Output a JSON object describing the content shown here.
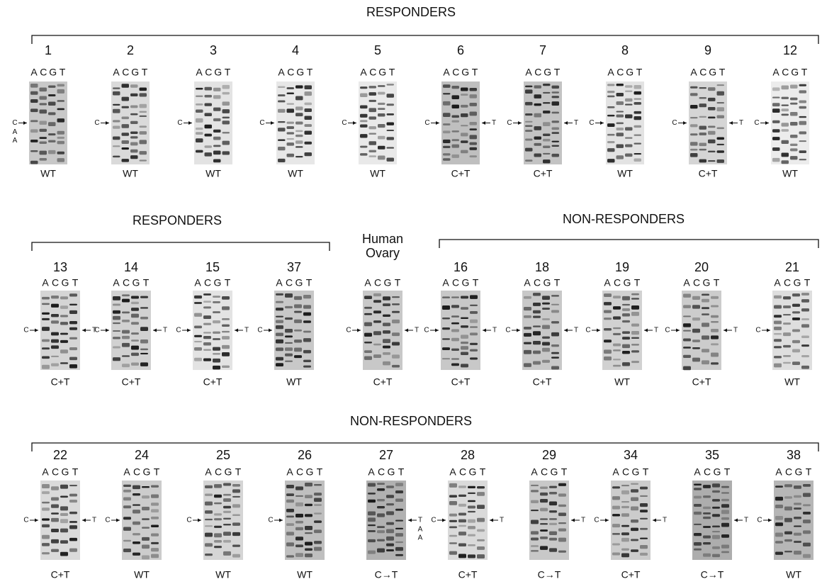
{
  "bases": [
    "A",
    "C",
    "G",
    "T"
  ],
  "panels": [
    {
      "groups": [
        {
          "title": "RESPONDERS",
          "lanes": [
            {
              "label": "1",
              "genotype": "WT",
              "left_mark": "C",
              "left_extra": [
                "A",
                "A"
              ]
            },
            {
              "label": "2",
              "genotype": "WT",
              "left_mark": "C"
            },
            {
              "label": "3",
              "genotype": "WT",
              "left_mark": "C"
            },
            {
              "label": "4",
              "genotype": "WT",
              "left_mark": "C"
            },
            {
              "label": "5",
              "genotype": "WT",
              "left_mark": "C"
            },
            {
              "label": "6",
              "genotype": "C+T",
              "left_mark": "C",
              "right_mark": "T"
            },
            {
              "label": "7",
              "genotype": "C+T",
              "left_mark": "C",
              "right_mark": "T"
            },
            {
              "label": "8",
              "genotype": "WT",
              "left_mark": "C"
            },
            {
              "label": "9",
              "genotype": "C+T",
              "left_mark": "C",
              "right_mark": "T"
            },
            {
              "label": "12",
              "genotype": "WT",
              "left_mark": "C"
            }
          ]
        }
      ]
    },
    {
      "groups": [
        {
          "title": "RESPONDERS",
          "lanes": [
            {
              "label": "13",
              "genotype": "C+T",
              "left_mark": "C",
              "right_mark": "T"
            },
            {
              "label": "14",
              "genotype": "C+T",
              "left_mark": "C",
              "right_mark": "T"
            },
            {
              "label": "15",
              "genotype": "C+T",
              "left_mark": "C",
              "right_mark": "T"
            },
            {
              "label": "37",
              "genotype": "WT",
              "left_mark": "C"
            }
          ]
        },
        {
          "title_lines": [
            "Human",
            "Ovary"
          ],
          "lanes": [
            {
              "genotype": "C+T",
              "left_mark": "C",
              "right_mark": "T"
            }
          ]
        },
        {
          "title": "NON-RESPONDERS",
          "lanes": [
            {
              "label": "16",
              "genotype": "C+T",
              "left_mark": "C",
              "right_mark": "T"
            },
            {
              "label": "18",
              "genotype": "C+T",
              "left_mark": "C",
              "right_mark": "T"
            },
            {
              "label": "19",
              "genotype": "WT",
              "left_mark": "C",
              "right_mark": "T"
            },
            {
              "label": "20",
              "genotype": "C+T",
              "left_mark": "C",
              "right_mark": "T"
            },
            {
              "label": "21",
              "genotype": "WT",
              "left_mark": "C"
            }
          ]
        }
      ]
    },
    {
      "groups": [
        {
          "title": "NON-RESPONDERS",
          "lanes": [
            {
              "label": "22",
              "genotype": "C+T",
              "left_mark": "C",
              "right_mark": "T"
            },
            {
              "label": "24",
              "genotype": "WT",
              "left_mark": "C"
            },
            {
              "label": "25",
              "genotype": "WT",
              "left_mark": "C"
            },
            {
              "label": "26",
              "genotype": "WT",
              "left_mark": "C"
            },
            {
              "label": "27",
              "genotype": "C→T",
              "right_mark": "T",
              "right_extra": [
                "A",
                "A"
              ]
            },
            {
              "label": "28",
              "genotype": "C+T",
              "left_mark": "C",
              "right_mark": "T"
            },
            {
              "label": "29",
              "genotype": "C→T",
              "right_mark": "T"
            },
            {
              "label": "34",
              "genotype": "C+T",
              "left_mark": "C",
              "right_mark": "T"
            },
            {
              "label": "35",
              "genotype": "C→T",
              "right_mark": "T"
            },
            {
              "label": "38",
              "genotype": "WT",
              "left_mark": "C"
            }
          ]
        }
      ]
    }
  ]
}
